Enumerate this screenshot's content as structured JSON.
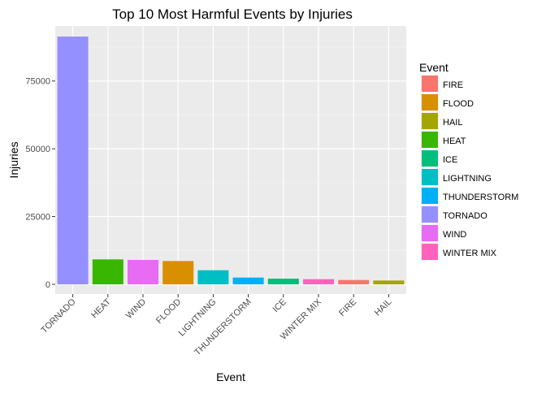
{
  "chart_data": {
    "type": "bar",
    "title": "Top 10 Most Harmful Events by Injuries",
    "xlabel": "Event",
    "ylabel": "Injuries",
    "ylim": [
      0,
      95000
    ],
    "yticks": [
      0,
      25000,
      50000,
      75000
    ],
    "grid": true,
    "legend_title": "Event",
    "legend_placement": "right",
    "categories": [
      "TORNADO",
      "HEAT",
      "WIND",
      "FLOOD",
      "LIGHTNING",
      "THUNDERSTORM",
      "ICE",
      "WINTER MIX",
      "FIRE",
      "HAIL"
    ],
    "values": [
      91400,
      9200,
      9000,
      8600,
      5200,
      2500,
      2100,
      1900,
      1600,
      1400
    ],
    "colors": {
      "FIRE": "#F8766D",
      "FLOOD": "#D89000",
      "HAIL": "#A3A500",
      "HEAT": "#39B600",
      "ICE": "#00BF7D",
      "LIGHTNING": "#00BFC4",
      "THUNDERSTORM": "#00B0F6",
      "TORNADO": "#9590FF",
      "WIND": "#E76BF3",
      "WINTER MIX": "#FF62BC"
    },
    "legend_entries": [
      "FIRE",
      "FLOOD",
      "HAIL",
      "HEAT",
      "ICE",
      "LIGHTNING",
      "THUNDERSTORM",
      "TORNADO",
      "WIND",
      "WINTER MIX"
    ]
  }
}
